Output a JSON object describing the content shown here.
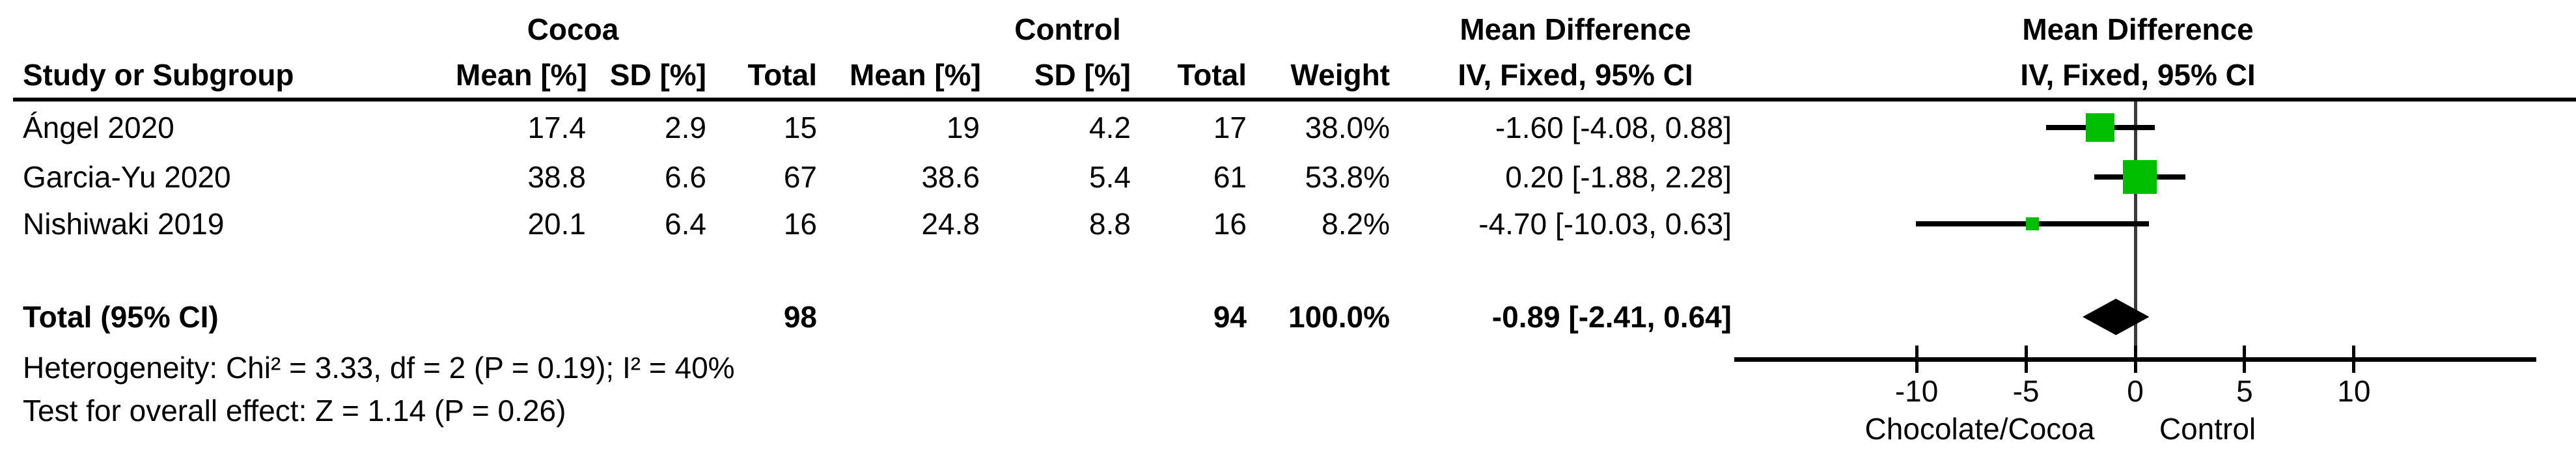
{
  "table": {
    "group_headers": {
      "cocoa": "Cocoa",
      "control": "Control",
      "md_left": "Mean Difference",
      "md_right": "Mean Difference"
    },
    "col_headers": {
      "study": "Study or Subgroup",
      "cocoa_mean": "Mean [%]",
      "cocoa_sd": "SD [%]",
      "cocoa_total": "Total",
      "control_mean": "Mean [%]",
      "control_sd": "SD [%]",
      "control_total": "Total",
      "weight": "Weight",
      "ci_left": "IV, Fixed, 95% CI",
      "ci_right": "IV, Fixed, 95% CI"
    },
    "rows": [
      {
        "study": "Ángel 2020",
        "c_mean": "17.4",
        "c_sd": "2.9",
        "c_total": "15",
        "t_mean": "19",
        "t_sd": "4.2",
        "t_total": "17",
        "weight": "38.0%",
        "ci": "-1.60 [-4.08, 0.88]"
      },
      {
        "study": "Garcia-Yu 2020",
        "c_mean": "38.8",
        "c_sd": "6.6",
        "c_total": "67",
        "t_mean": "38.6",
        "t_sd": "5.4",
        "t_total": "61",
        "weight": "53.8%",
        "ci": "0.20 [-1.88, 2.28]"
      },
      {
        "study": "Nishiwaki 2019",
        "c_mean": "20.1",
        "c_sd": "6.4",
        "c_total": "16",
        "t_mean": "24.8",
        "t_sd": "8.8",
        "t_total": "16",
        "weight": "8.2%",
        "ci": "-4.70 [-10.03, 0.63]"
      }
    ],
    "total": {
      "label": "Total (95% CI)",
      "c_total": "98",
      "t_total": "94",
      "weight": "100.0%",
      "ci": "-0.89 [-2.41, 0.64]"
    },
    "heterogeneity": "Heterogeneity: Chi² = 3.33, df = 2 (P = 0.19); I² = 40%",
    "overall_effect": "Test for overall effect: Z = 1.14 (P = 0.26)"
  },
  "chart_data": {
    "type": "forest",
    "effect_measure": "Mean Difference",
    "method": "IV, Fixed, 95% CI",
    "axis": {
      "min": -18.34,
      "max": 18.34,
      "ticks": [
        -10,
        -5,
        0,
        5,
        10
      ],
      "zero_line": 0
    },
    "studies": [
      {
        "name": "Ángel 2020",
        "est": -1.6,
        "lo": -4.08,
        "hi": 0.88,
        "weight_pct": 38.0
      },
      {
        "name": "Garcia-Yu 2020",
        "est": 0.2,
        "lo": -1.88,
        "hi": 2.28,
        "weight_pct": 53.8
      },
      {
        "name": "Nishiwaki 2019",
        "est": -4.7,
        "lo": -10.03,
        "hi": 0.63,
        "weight_pct": 8.2
      }
    ],
    "total": {
      "est": -0.89,
      "lo": -2.41,
      "hi": 0.64,
      "weight_pct": 100.0
    },
    "favours_left": "Chocolate/Cocoa",
    "favours_right": "Control",
    "marker_color": "#00be00"
  }
}
